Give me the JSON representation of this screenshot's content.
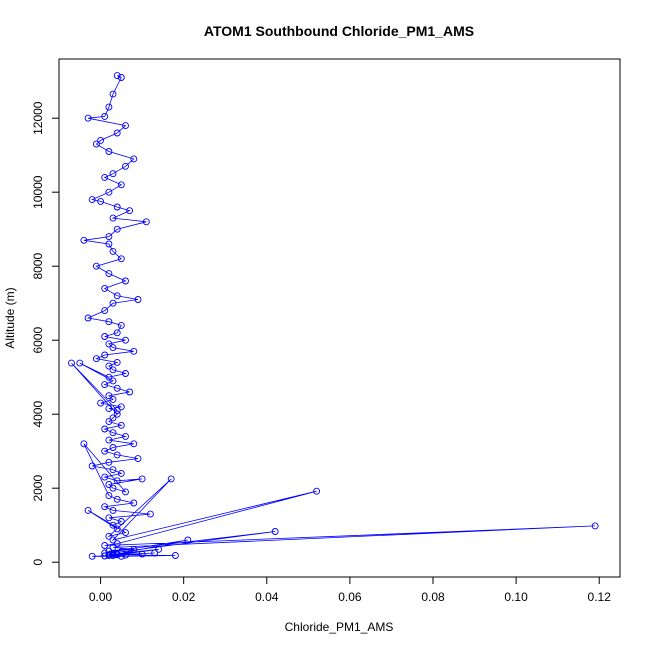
{
  "chart_data": {
    "type": "line",
    "title": "ATOM1 Southbound Chloride_PM1_AMS",
    "xlabel": "Chloride_PM1_AMS",
    "ylabel": "Altitude (m)",
    "xlim": [
      -0.01,
      0.125
    ],
    "ylim": [
      -400,
      13600
    ],
    "xticks": [
      "0.00",
      "0.02",
      "0.04",
      "0.06",
      "0.08",
      "0.10",
      "0.12"
    ],
    "yticks": [
      "0",
      "2000",
      "4000",
      "6000",
      "8000",
      "10000",
      "12000"
    ],
    "grid": false,
    "legend": "none",
    "marker": "open-circle",
    "series": [
      {
        "color": "#0000ff",
        "x": [
          0.004,
          0.005,
          0.003,
          0.002,
          0.001,
          -0.003,
          0.006,
          0.004,
          0.0,
          -0.001,
          0.002,
          0.008,
          0.006,
          0.003,
          0.001,
          0.005,
          0.002,
          -0.002,
          0.0,
          0.004,
          0.007,
          0.003,
          0.011,
          0.004,
          0.002,
          -0.004,
          0.002,
          0.003,
          0.005,
          -0.001,
          0.002,
          0.006,
          0.001,
          0.004,
          0.009,
          0.003,
          0.001,
          -0.003,
          0.002,
          0.005,
          0.004,
          0.001,
          0.006,
          0.002,
          0.003,
          0.008,
          0.001,
          -0.001,
          0.004,
          0.002,
          0.003,
          0.006,
          0.002,
          -0.005,
          0.003,
          0.001,
          0.004,
          0.007,
          0.002,
          0.003,
          0.0,
          0.005,
          0.002,
          0.004,
          -0.007,
          0.004,
          0.003,
          0.002,
          0.005,
          0.001,
          0.003,
          0.006,
          0.002,
          0.008,
          0.003,
          0.001,
          0.004,
          0.009,
          0.002,
          -0.002,
          0.003,
          0.005,
          0.001,
          0.004,
          0.01,
          0.002,
          0.003,
          0.006,
          -0.004,
          0.002,
          0.004,
          0.008,
          0.001,
          0.003,
          0.012,
          0.002,
          0.005,
          0.003,
          0.004,
          -0.003,
          0.006,
          0.002,
          0.017,
          0.003,
          0.052,
          0.004,
          0.001,
          0.119,
          0.003,
          0.008,
          0.002,
          0.042,
          0.005,
          0.001,
          0.021,
          0.004,
          0.002,
          0.014,
          0.003,
          0.001,
          -0.002,
          0.005,
          0.018,
          0.002,
          0.003,
          0.006,
          0.001,
          0.004,
          0.013,
          0.002,
          0.01,
          0.003
        ],
        "y": [
          13150,
          13100,
          12650,
          12300,
          12050,
          12000,
          11800,
          11600,
          11400,
          11300,
          11100,
          10900,
          10700,
          10500,
          10400,
          10200,
          10000,
          9800,
          9750,
          9600,
          9500,
          9300,
          9200,
          9000,
          8800,
          8700,
          8600,
          8400,
          8200,
          8000,
          7800,
          7600,
          7400,
          7200,
          7100,
          7000,
          6800,
          6600,
          6500,
          6400,
          6200,
          6100,
          6000,
          5900,
          5800,
          5700,
          5600,
          5500,
          5400,
          5300,
          5200,
          5100,
          5000,
          5380,
          4900,
          4800,
          4700,
          4600,
          4500,
          4400,
          4300,
          4200,
          4150,
          4100,
          5380,
          4000,
          3900,
          3800,
          3700,
          3600,
          3500,
          3400,
          3300,
          3200,
          3100,
          3000,
          2900,
          2800,
          2700,
          2600,
          2500,
          2400,
          2300,
          2200,
          2250,
          2100,
          2000,
          1900,
          3200,
          1800,
          1700,
          1600,
          1500,
          1400,
          1300,
          1200,
          1100,
          1000,
          900,
          1400,
          800,
          700,
          2250,
          600,
          1920,
          500,
          450,
          980,
          400,
          350,
          300,
          830,
          280,
          250,
          600,
          220,
          200,
          350,
          180,
          170,
          160,
          160,
          180,
          200,
          230,
          190,
          170,
          200,
          250,
          180,
          220,
          200
        ]
      }
    ]
  }
}
